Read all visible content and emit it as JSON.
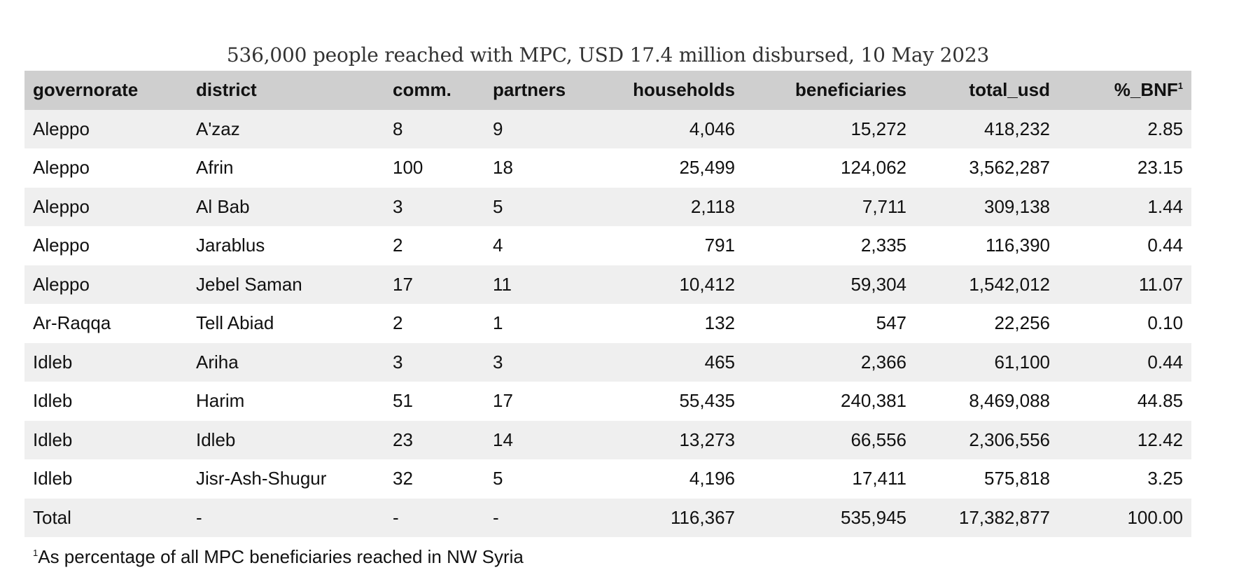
{
  "title": "536,000 people reached with MPC, USD 17.4 million disbursed, 10 May 2023",
  "table": {
    "headers": {
      "governorate": "governorate",
      "district": "district",
      "comm": "comm.",
      "partners": "partners",
      "households": "households",
      "beneficiaries": "beneficiaries",
      "total_usd": "total_usd",
      "pct_bnf": "%_BNF",
      "pct_bnf_sup": "1"
    },
    "rows": [
      {
        "governorate": "Aleppo",
        "district": "A'zaz",
        "comm": "8",
        "partners": "9",
        "households": "4,046",
        "beneficiaries": "15,272",
        "total_usd": "418,232",
        "pct_bnf": "2.85"
      },
      {
        "governorate": "Aleppo",
        "district": "Afrin",
        "comm": "100",
        "partners": "18",
        "households": "25,499",
        "beneficiaries": "124,062",
        "total_usd": "3,562,287",
        "pct_bnf": "23.15"
      },
      {
        "governorate": "Aleppo",
        "district": "Al Bab",
        "comm": "3",
        "partners": "5",
        "households": "2,118",
        "beneficiaries": "7,711",
        "total_usd": "309,138",
        "pct_bnf": "1.44"
      },
      {
        "governorate": "Aleppo",
        "district": "Jarablus",
        "comm": "2",
        "partners": "4",
        "households": "791",
        "beneficiaries": "2,335",
        "total_usd": "116,390",
        "pct_bnf": "0.44"
      },
      {
        "governorate": "Aleppo",
        "district": "Jebel Saman",
        "comm": "17",
        "partners": "11",
        "households": "10,412",
        "beneficiaries": "59,304",
        "total_usd": "1,542,012",
        "pct_bnf": "11.07"
      },
      {
        "governorate": "Ar-Raqqa",
        "district": "Tell Abiad",
        "comm": "2",
        "partners": "1",
        "households": "132",
        "beneficiaries": "547",
        "total_usd": "22,256",
        "pct_bnf": "0.10"
      },
      {
        "governorate": "Idleb",
        "district": "Ariha",
        "comm": "3",
        "partners": "3",
        "households": "465",
        "beneficiaries": "2,366",
        "total_usd": "61,100",
        "pct_bnf": "0.44"
      },
      {
        "governorate": "Idleb",
        "district": "Harim",
        "comm": "51",
        "partners": "17",
        "households": "55,435",
        "beneficiaries": "240,381",
        "total_usd": "8,469,088",
        "pct_bnf": "44.85"
      },
      {
        "governorate": "Idleb",
        "district": "Idleb",
        "comm": "23",
        "partners": "14",
        "households": "13,273",
        "beneficiaries": "66,556",
        "total_usd": "2,306,556",
        "pct_bnf": "12.42"
      },
      {
        "governorate": "Idleb",
        "district": "Jisr-Ash-Shugur",
        "comm": "32",
        "partners": "5",
        "households": "4,196",
        "beneficiaries": "17,411",
        "total_usd": "575,818",
        "pct_bnf": "3.25"
      },
      {
        "governorate": "Total",
        "district": "-",
        "comm": "-",
        "partners": "-",
        "households": "116,367",
        "beneficiaries": "535,945",
        "total_usd": "17,382,877",
        "pct_bnf": "100.00"
      }
    ]
  },
  "footnote": {
    "marker": "1",
    "text": "As percentage of all MPC beneficiaries reached in NW Syria"
  }
}
